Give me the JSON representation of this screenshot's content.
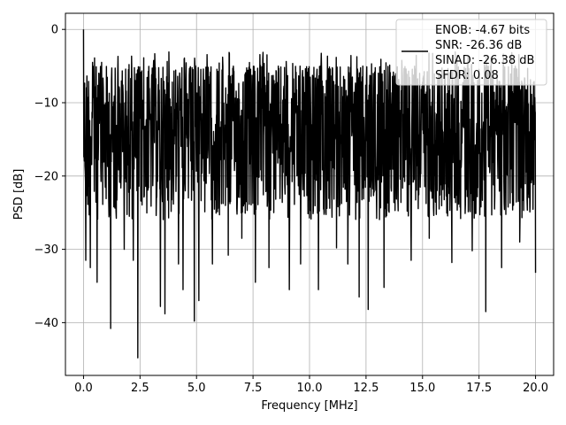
{
  "chart_data": {
    "type": "line",
    "xlabel": "Frequency [MHz]",
    "ylabel": "PSD [dB]",
    "xlim": [
      -0.8,
      20.8
    ],
    "ylim": [
      -47.2,
      2.2
    ],
    "x_ticks": [
      0.0,
      2.5,
      5.0,
      7.5,
      10.0,
      12.5,
      15.0,
      17.5,
      20.0
    ],
    "x_tick_labels": [
      "0.0",
      "2.5",
      "5.0",
      "7.5",
      "10.0",
      "12.5",
      "15.0",
      "17.5",
      "20.0"
    ],
    "y_ticks": [
      0,
      -10,
      -20,
      -30,
      -40
    ],
    "y_tick_labels": [
      "0",
      "−10",
      "−20",
      "−30",
      "−40"
    ],
    "grid": true,
    "legend": {
      "placement": "top-right",
      "entries": [
        "ENOB: -4.67 bits",
        "SNR: -26.36 dB",
        "SINAD: -26.38 dB",
        "SFDR: 0.08"
      ]
    },
    "series": [
      {
        "color": "#000000",
        "x_range": [
          0.0,
          20.0
        ],
        "envelope": {
          "upper_typical": -5,
          "lower_typical": -26,
          "peak": {
            "x": 0.0,
            "y": 0.0
          }
        },
        "notable_dips": [
          {
            "x": 0.1,
            "y": -31.5
          },
          {
            "x": 0.3,
            "y": -32.5
          },
          {
            "x": 0.6,
            "y": -34.5
          },
          {
            "x": 1.2,
            "y": -40.8
          },
          {
            "x": 1.8,
            "y": -30.0
          },
          {
            "x": 2.2,
            "y": -31.5
          },
          {
            "x": 2.4,
            "y": -44.8
          },
          {
            "x": 3.4,
            "y": -37.8
          },
          {
            "x": 3.6,
            "y": -38.8
          },
          {
            "x": 4.2,
            "y": -32.0
          },
          {
            "x": 4.4,
            "y": -35.5
          },
          {
            "x": 4.9,
            "y": -39.8
          },
          {
            "x": 5.1,
            "y": -37.0
          },
          {
            "x": 5.7,
            "y": -32.0
          },
          {
            "x": 6.4,
            "y": -30.8
          },
          {
            "x": 7.0,
            "y": -28.5
          },
          {
            "x": 7.6,
            "y": -34.5
          },
          {
            "x": 8.2,
            "y": -32.5
          },
          {
            "x": 9.1,
            "y": -35.5
          },
          {
            "x": 9.6,
            "y": -32.0
          },
          {
            "x": 10.4,
            "y": -35.5
          },
          {
            "x": 11.2,
            "y": -29.8
          },
          {
            "x": 11.7,
            "y": -32.0
          },
          {
            "x": 12.2,
            "y": -36.5
          },
          {
            "x": 12.6,
            "y": -38.2
          },
          {
            "x": 13.3,
            "y": -35.2
          },
          {
            "x": 14.5,
            "y": -31.5
          },
          {
            "x": 15.3,
            "y": -28.5
          },
          {
            "x": 16.3,
            "y": -31.8
          },
          {
            "x": 17.2,
            "y": -30.2
          },
          {
            "x": 17.8,
            "y": -38.5
          },
          {
            "x": 18.5,
            "y": -32.5
          },
          {
            "x": 19.3,
            "y": -29.0
          },
          {
            "x": 20.0,
            "y": -33.2
          }
        ]
      }
    ]
  }
}
